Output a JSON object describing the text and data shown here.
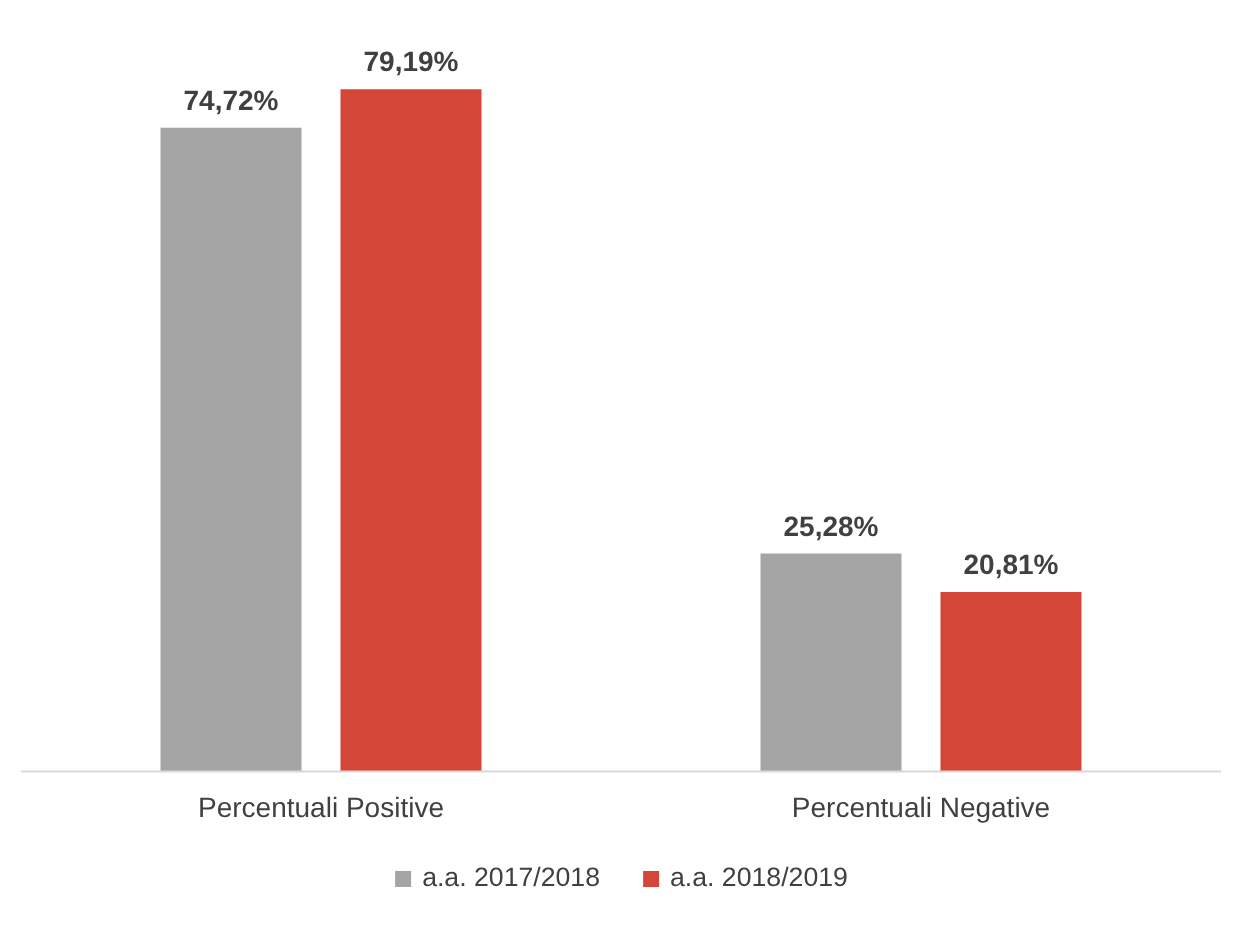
{
  "chart_data": {
    "type": "bar",
    "categories": [
      "Percentuali Positive",
      "Percentuali Negative"
    ],
    "series": [
      {
        "name": "a.a. 2017/2018",
        "color": "#a5a5a5",
        "values": [
          74.72,
          25.28
        ],
        "value_labels": [
          "74,72%",
          "25,28%"
        ]
      },
      {
        "name": "a.a. 2018/2019",
        "color": "#d44637",
        "values": [
          79.19,
          20.81
        ],
        "value_labels": [
          "79,19%",
          "20,81%"
        ]
      }
    ],
    "legend": "bottom"
  }
}
